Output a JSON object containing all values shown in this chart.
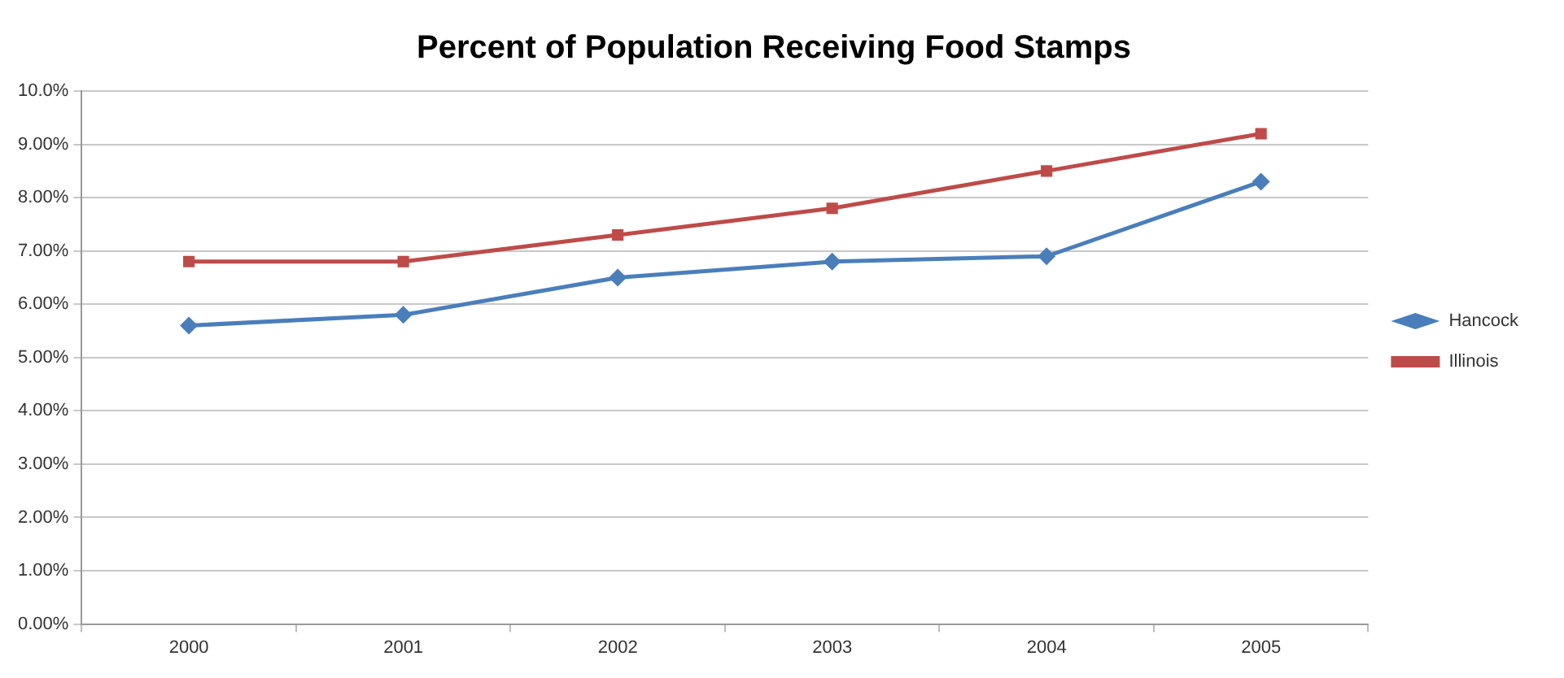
{
  "chart_data": {
    "type": "line",
    "title": "Percent of Population Receiving Food Stamps",
    "categories": [
      "2000",
      "2001",
      "2002",
      "2003",
      "2004",
      "2005"
    ],
    "series": [
      {
        "name": "Hancock",
        "color": "#4a7ebb",
        "marker": "diamond",
        "values": [
          5.6,
          5.8,
          6.5,
          6.8,
          6.9,
          8.3
        ]
      },
      {
        "name": "Illinois",
        "color": "#be4b48",
        "marker": "square",
        "values": [
          6.8,
          6.8,
          7.3,
          7.8,
          8.5,
          9.2
        ]
      }
    ],
    "ylim": [
      0,
      10
    ],
    "yticks": [
      {
        "value": 0,
        "label": "0.00%"
      },
      {
        "value": 1,
        "label": "1.00%"
      },
      {
        "value": 2,
        "label": "2.00%"
      },
      {
        "value": 3,
        "label": "3.00%"
      },
      {
        "value": 4,
        "label": "4.00%"
      },
      {
        "value": 5,
        "label": "5.00%"
      },
      {
        "value": 6,
        "label": "6.00%"
      },
      {
        "value": 7,
        "label": "7.00%"
      },
      {
        "value": 8,
        "label": "8.00%"
      },
      {
        "value": 9,
        "label": "9.00%"
      },
      {
        "value": 10,
        "label": "10.0%"
      }
    ],
    "grid": "y",
    "legend": "right",
    "line_style": "solid"
  }
}
